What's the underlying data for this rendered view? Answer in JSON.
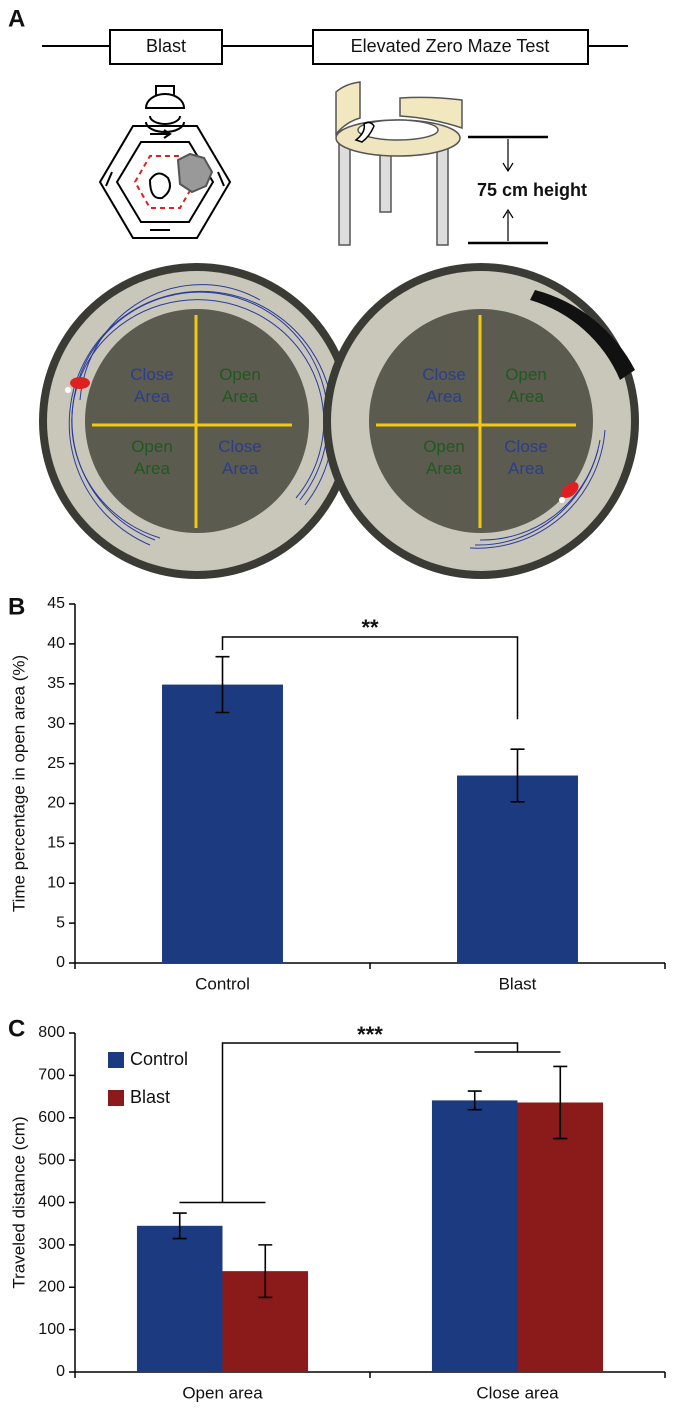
{
  "panel_labels": [
    "A",
    "B",
    "C"
  ],
  "panel_a": {
    "timeline": [
      "Blast",
      "Elevated Zero Maze Test"
    ],
    "height_label": "75 cm height",
    "mazes": [
      {
        "quadrants": [
          "Close Area",
          "Open Area",
          "Open Area",
          "Close Area"
        ]
      },
      {
        "quadrants": [
          "Close Area",
          "Open Area",
          "Open Area",
          "Close Area"
        ]
      }
    ]
  },
  "chart_data": [
    {
      "type": "bar",
      "ylabel": "Time percentage in open area (%)",
      "categories": [
        "Control",
        "Blast"
      ],
      "values": [
        34.9,
        23.5
      ],
      "errors": [
        3.5,
        3.3
      ],
      "color": "#1c3a80",
      "ylim": [
        0,
        45
      ],
      "yticks": [
        0,
        5,
        10,
        15,
        20,
        25,
        30,
        35,
        40,
        45
      ],
      "annotation": "**"
    },
    {
      "type": "grouped_bar",
      "ylabel": "Traveled distance (cm)",
      "categories": [
        "Open area",
        "Close area"
      ],
      "series": [
        {
          "name": "Control",
          "color": "#1c3a80",
          "values": [
            345,
            641
          ],
          "errors": [
            30,
            22
          ]
        },
        {
          "name": "Blast",
          "color": "#8b1a1a",
          "values": [
            238,
            636
          ],
          "errors": [
            62,
            85
          ]
        }
      ],
      "ylim": [
        0,
        800
      ],
      "yticks": [
        0,
        100,
        200,
        300,
        400,
        500,
        600,
        700,
        800
      ],
      "legend": "upper left",
      "annotation": "***"
    }
  ]
}
